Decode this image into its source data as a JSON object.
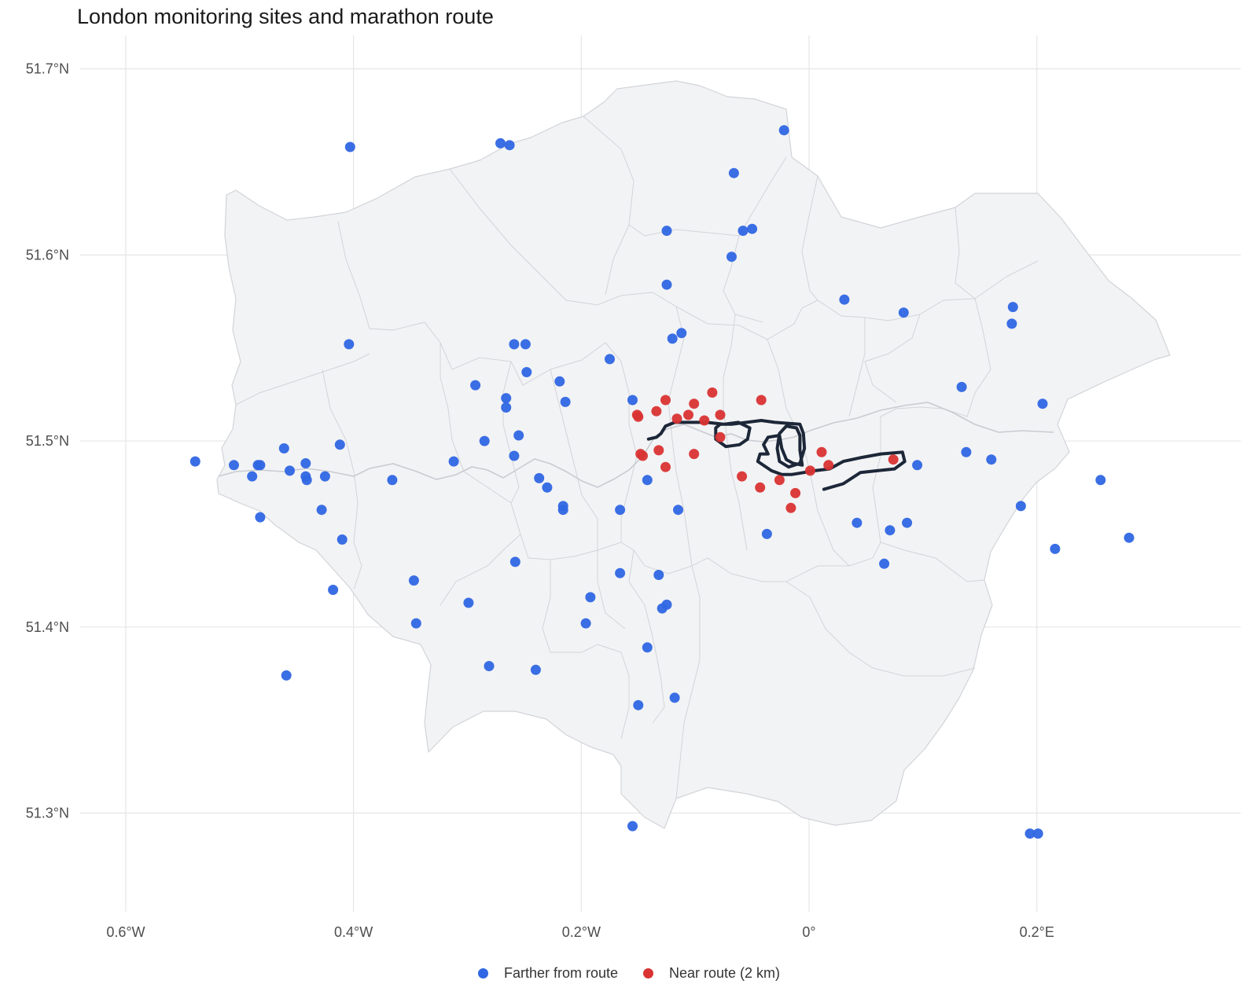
{
  "title": "London monitoring sites and marathon route",
  "chart_data": {
    "type": "scatter",
    "title": "London monitoring sites and marathon route",
    "xlabel": "",
    "ylabel": "",
    "xlim": [
      -0.64,
      0.379
    ],
    "ylim": [
      51.247,
      51.718
    ],
    "x_ticks": [
      {
        "value": -0.6,
        "label": "0.6°W"
      },
      {
        "value": -0.4,
        "label": "0.4°W"
      },
      {
        "value": -0.2,
        "label": "0.2°W"
      },
      {
        "value": 0.0,
        "label": "0°"
      },
      {
        "value": 0.2,
        "label": "0.2°E"
      }
    ],
    "y_ticks": [
      {
        "value": 51.3,
        "label": "51.3°N"
      },
      {
        "value": 51.4,
        "label": "51.4°N"
      },
      {
        "value": 51.5,
        "label": "51.5°N"
      },
      {
        "value": 51.6,
        "label": "51.6°N"
      },
      {
        "value": 51.7,
        "label": "51.7°N"
      }
    ],
    "grid": true,
    "legend_position": "bottom",
    "colors": {
      "far": "#2f66e3",
      "near": "#d93333",
      "route": "#1c2738",
      "land": "#f2f3f5",
      "border": "#d2d4d8",
      "grid": "#e6e6e6"
    },
    "series": [
      {
        "name": "Farther from route",
        "color": "#2f66e3",
        "points": [
          [
            -0.022,
            51.667
          ],
          [
            -0.271,
            51.66
          ],
          [
            -0.263,
            51.659
          ],
          [
            -0.403,
            51.658
          ],
          [
            -0.066,
            51.644
          ],
          [
            -0.125,
            51.613
          ],
          [
            -0.058,
            51.613
          ],
          [
            -0.05,
            51.614
          ],
          [
            -0.068,
            51.599
          ],
          [
            -0.125,
            51.584
          ],
          [
            0.031,
            51.576
          ],
          [
            0.083,
            51.569
          ],
          [
            0.179,
            51.572
          ],
          [
            0.178,
            51.563
          ],
          [
            -0.112,
            51.558
          ],
          [
            -0.12,
            51.555
          ],
          [
            -0.404,
            51.552
          ],
          [
            -0.259,
            51.552
          ],
          [
            -0.249,
            51.552
          ],
          [
            -0.175,
            51.544
          ],
          [
            -0.248,
            51.537
          ],
          [
            -0.219,
            51.532
          ],
          [
            -0.293,
            51.53
          ],
          [
            0.134,
            51.529
          ],
          [
            -0.266,
            51.523
          ],
          [
            -0.155,
            51.522
          ],
          [
            -0.214,
            51.521
          ],
          [
            0.205,
            51.52
          ],
          [
            -0.266,
            51.518
          ],
          [
            -0.255,
            51.503
          ],
          [
            -0.285,
            51.5
          ],
          [
            -0.412,
            51.498
          ],
          [
            -0.461,
            51.496
          ],
          [
            0.138,
            51.494
          ],
          [
            -0.259,
            51.492
          ],
          [
            0.16,
            51.49
          ],
          [
            -0.539,
            51.489
          ],
          [
            -0.312,
            51.489
          ],
          [
            -0.505,
            51.487
          ],
          [
            -0.484,
            51.487
          ],
          [
            -0.482,
            51.487
          ],
          [
            -0.442,
            51.488
          ],
          [
            0.095,
            51.487
          ],
          [
            -0.456,
            51.484
          ],
          [
            -0.489,
            51.481
          ],
          [
            -0.442,
            51.481
          ],
          [
            -0.425,
            51.481
          ],
          [
            -0.441,
            51.479
          ],
          [
            -0.366,
            51.479
          ],
          [
            -0.237,
            51.48
          ],
          [
            -0.142,
            51.479
          ],
          [
            0.256,
            51.479
          ],
          [
            -0.23,
            51.475
          ],
          [
            -0.216,
            51.465
          ],
          [
            -0.216,
            51.463
          ],
          [
            -0.166,
            51.463
          ],
          [
            -0.115,
            51.463
          ],
          [
            0.186,
            51.465
          ],
          [
            -0.482,
            51.459
          ],
          [
            -0.428,
            51.463
          ],
          [
            0.042,
            51.456
          ],
          [
            0.086,
            51.456
          ],
          [
            0.071,
            51.452
          ],
          [
            -0.037,
            51.45
          ],
          [
            0.281,
            51.448
          ],
          [
            -0.41,
            51.447
          ],
          [
            0.216,
            51.442
          ],
          [
            -0.258,
            51.435
          ],
          [
            0.066,
            51.434
          ],
          [
            -0.166,
            51.429
          ],
          [
            -0.132,
            51.428
          ],
          [
            -0.347,
            51.425
          ],
          [
            -0.418,
            51.42
          ],
          [
            -0.192,
            51.416
          ],
          [
            -0.299,
            51.413
          ],
          [
            -0.125,
            51.412
          ],
          [
            -0.129,
            51.41
          ],
          [
            -0.196,
            51.402
          ],
          [
            -0.345,
            51.402
          ],
          [
            -0.142,
            51.389
          ],
          [
            -0.281,
            51.379
          ],
          [
            -0.24,
            51.377
          ],
          [
            -0.459,
            51.374
          ],
          [
            -0.118,
            51.362
          ],
          [
            -0.15,
            51.358
          ],
          [
            -0.155,
            51.293
          ],
          [
            0.194,
            51.289
          ],
          [
            0.201,
            51.289
          ]
        ]
      },
      {
        "name": "Near route (2 km)",
        "color": "#d93333",
        "points": [
          [
            -0.085,
            51.526
          ],
          [
            -0.042,
            51.522
          ],
          [
            -0.126,
            51.522
          ],
          [
            -0.101,
            51.52
          ],
          [
            -0.134,
            51.516
          ],
          [
            -0.151,
            51.514
          ],
          [
            -0.15,
            51.513
          ],
          [
            -0.106,
            51.514
          ],
          [
            -0.078,
            51.514
          ],
          [
            -0.116,
            51.512
          ],
          [
            -0.092,
            51.511
          ],
          [
            -0.078,
            51.502
          ],
          [
            -0.132,
            51.495
          ],
          [
            -0.148,
            51.493
          ],
          [
            -0.146,
            51.492
          ],
          [
            -0.101,
            51.493
          ],
          [
            0.011,
            51.494
          ],
          [
            0.074,
            51.49
          ],
          [
            0.017,
            51.487
          ],
          [
            -0.126,
            51.486
          ],
          [
            0.001,
            51.484
          ],
          [
            -0.059,
            51.481
          ],
          [
            -0.026,
            51.479
          ],
          [
            -0.043,
            51.475
          ],
          [
            -0.012,
            51.472
          ],
          [
            -0.016,
            51.464
          ]
        ]
      },
      {
        "name": "Marathon route",
        "color": "#1c2738",
        "points": [
          [
            0.013,
            51.474
          ],
          [
            0.03,
            51.477
          ],
          [
            0.045,
            51.483
          ],
          [
            0.06,
            51.484
          ],
          [
            0.075,
            51.485
          ],
          [
            0.084,
            51.489
          ],
          [
            0.082,
            51.494
          ],
          [
            0.063,
            51.493
          ],
          [
            0.045,
            51.491
          ],
          [
            0.03,
            51.489
          ],
          [
            0.018,
            51.485
          ],
          [
            0.005,
            51.484
          ],
          [
            -0.005,
            51.483
          ],
          [
            -0.015,
            51.482
          ],
          [
            -0.024,
            51.482
          ],
          [
            -0.033,
            51.484
          ],
          [
            -0.045,
            51.489
          ],
          [
            -0.043,
            51.493
          ],
          [
            -0.036,
            51.493
          ],
          [
            -0.04,
            51.498
          ],
          [
            -0.036,
            51.502
          ],
          [
            -0.026,
            51.503
          ],
          [
            -0.024,
            51.496
          ],
          [
            -0.02,
            51.49
          ],
          [
            -0.014,
            51.488
          ],
          [
            -0.006,
            51.487
          ],
          [
            -0.008,
            51.495
          ],
          [
            -0.008,
            51.503
          ],
          [
            -0.011,
            51.507
          ],
          [
            -0.02,
            51.508
          ],
          [
            -0.026,
            51.504
          ],
          [
            -0.028,
            51.496
          ],
          [
            -0.026,
            51.489
          ],
          [
            -0.018,
            51.486
          ],
          [
            -0.008,
            51.488
          ],
          [
            -0.004,
            51.496
          ],
          [
            -0.005,
            51.504
          ],
          [
            -0.008,
            51.509
          ],
          [
            -0.03,
            51.51
          ],
          [
            -0.042,
            51.511
          ],
          [
            -0.055,
            51.51
          ],
          [
            -0.068,
            51.509
          ],
          [
            -0.078,
            51.509
          ],
          [
            -0.082,
            51.507
          ],
          [
            -0.082,
            51.501
          ],
          [
            -0.073,
            51.497
          ],
          [
            -0.061,
            51.498
          ],
          [
            -0.054,
            51.501
          ],
          [
            -0.052,
            51.507
          ],
          [
            -0.062,
            51.51
          ],
          [
            -0.075,
            51.509
          ],
          [
            -0.09,
            51.51
          ],
          [
            -0.105,
            51.51
          ],
          [
            -0.118,
            51.51
          ],
          [
            -0.126,
            51.508
          ],
          [
            -0.13,
            51.504
          ],
          [
            -0.134,
            51.502
          ],
          [
            -0.141,
            51.501
          ]
        ]
      }
    ]
  },
  "legend": {
    "far_label": "Farther from route",
    "near_label": "Near route (2 km)"
  }
}
